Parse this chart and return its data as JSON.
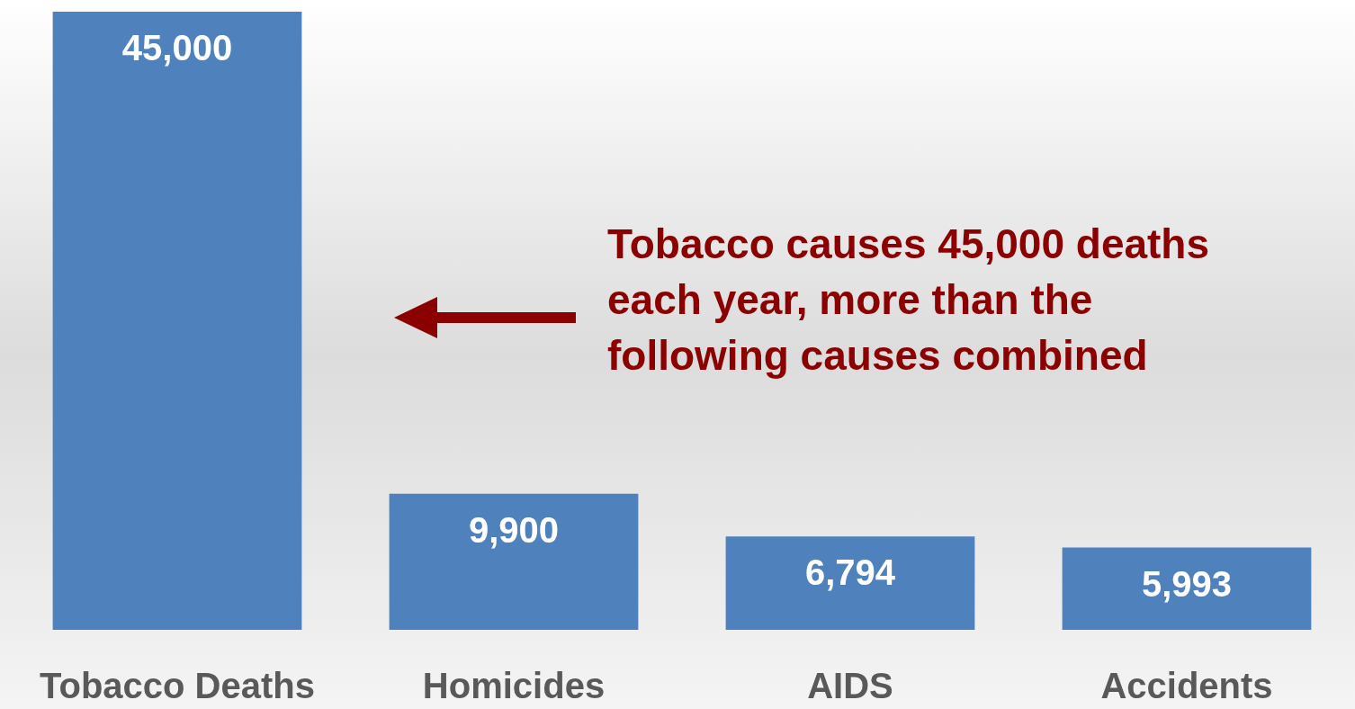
{
  "chart_data": {
    "type": "bar",
    "categories": [
      "Tobacco Deaths",
      "Homicides",
      "AIDS",
      "Accidents"
    ],
    "values": [
      45000,
      9900,
      6794,
      5993
    ],
    "color": "#4f81bd",
    "value_labels": [
      "45,000",
      "9,900",
      "6,794",
      "5,993"
    ],
    "annotations": [
      "Tobacco causes 45,000 deaths each year, more than the following causes combined"
    ]
  }
}
